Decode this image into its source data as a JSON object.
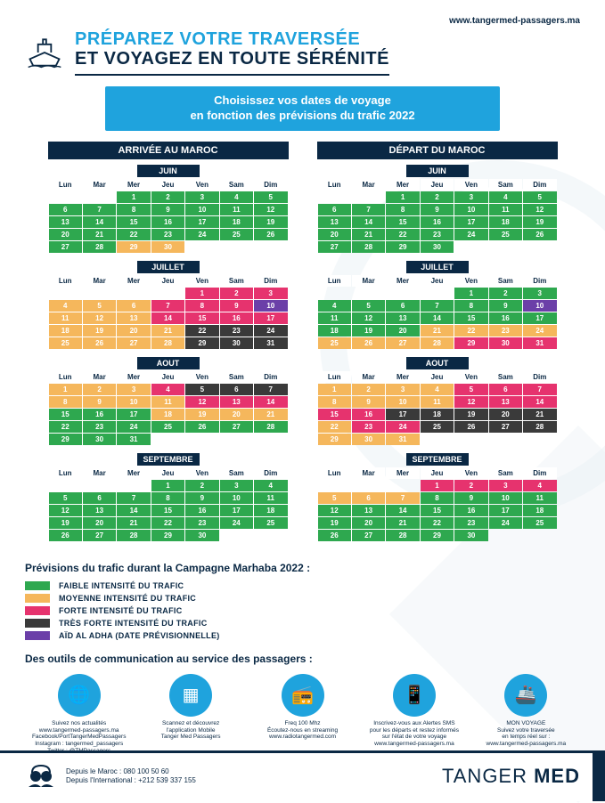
{
  "url_top": "www.tangermed-passagers.ma",
  "title_line1": "PRÉPAREZ VOTRE TRAVERSÉE",
  "title_line2": "ET VOYAGEZ EN TOUTE SÉRÉNITÉ",
  "banner_line1": "Choisissez vos dates de voyage",
  "banner_line2": "en fonction des prévisions du trafic 2022",
  "arrivee_header": "ARRIVÉE AU MAROC",
  "depart_header": "DÉPART DU MAROC",
  "day_headers": [
    "Lun",
    "Mar",
    "Mer",
    "Jeu",
    "Ven",
    "Sam",
    "Dim"
  ],
  "colors": {
    "green": "#2ea84f",
    "orange": "#f5b75c",
    "pink": "#e6336e",
    "dark": "#3a3a3a",
    "purple": "#6b3fa8",
    "navy": "#0a2844",
    "blue": "#1fa3dd"
  },
  "months_arrivee": [
    {
      "name": "JUIN",
      "weeks": [
        [
          null,
          null,
          [
            1,
            "g"
          ],
          [
            2,
            "g"
          ],
          [
            3,
            "g"
          ],
          [
            4,
            "g"
          ],
          [
            5,
            "g"
          ]
        ],
        [
          [
            6,
            "g"
          ],
          [
            7,
            "g"
          ],
          [
            8,
            "g"
          ],
          [
            9,
            "g"
          ],
          [
            10,
            "g"
          ],
          [
            11,
            "g"
          ],
          [
            12,
            "g"
          ]
        ],
        [
          [
            13,
            "g"
          ],
          [
            14,
            "g"
          ],
          [
            15,
            "g"
          ],
          [
            16,
            "g"
          ],
          [
            17,
            "g"
          ],
          [
            18,
            "g"
          ],
          [
            19,
            "g"
          ]
        ],
        [
          [
            20,
            "g"
          ],
          [
            21,
            "g"
          ],
          [
            22,
            "g"
          ],
          [
            23,
            "g"
          ],
          [
            24,
            "g"
          ],
          [
            25,
            "g"
          ],
          [
            26,
            "g"
          ]
        ],
        [
          [
            27,
            "g"
          ],
          [
            28,
            "g"
          ],
          [
            29,
            "o"
          ],
          [
            30,
            "o"
          ],
          null,
          null,
          null
        ]
      ]
    },
    {
      "name": "JUILLET",
      "weeks": [
        [
          null,
          null,
          null,
          null,
          [
            1,
            "p"
          ],
          [
            2,
            "p"
          ],
          [
            3,
            "p"
          ]
        ],
        [
          [
            4,
            "o"
          ],
          [
            5,
            "o"
          ],
          [
            6,
            "o"
          ],
          [
            7,
            "p"
          ],
          [
            8,
            "p"
          ],
          [
            9,
            "p"
          ],
          [
            10,
            "pu"
          ]
        ],
        [
          [
            11,
            "o"
          ],
          [
            12,
            "o"
          ],
          [
            13,
            "o"
          ],
          [
            14,
            "p"
          ],
          [
            15,
            "p"
          ],
          [
            16,
            "p"
          ],
          [
            17,
            "p"
          ]
        ],
        [
          [
            18,
            "o"
          ],
          [
            19,
            "o"
          ],
          [
            20,
            "o"
          ],
          [
            21,
            "o"
          ],
          [
            22,
            "d"
          ],
          [
            23,
            "d"
          ],
          [
            24,
            "d"
          ]
        ],
        [
          [
            25,
            "o"
          ],
          [
            26,
            "o"
          ],
          [
            27,
            "o"
          ],
          [
            28,
            "o"
          ],
          [
            29,
            "d"
          ],
          [
            30,
            "d"
          ],
          [
            31,
            "d"
          ]
        ]
      ]
    },
    {
      "name": "AOUT",
      "weeks": [
        [
          [
            1,
            "o"
          ],
          [
            2,
            "o"
          ],
          [
            3,
            "o"
          ],
          [
            4,
            "p"
          ],
          [
            5,
            "d"
          ],
          [
            6,
            "d"
          ],
          [
            7,
            "d"
          ]
        ],
        [
          [
            8,
            "o"
          ],
          [
            9,
            "o"
          ],
          [
            10,
            "o"
          ],
          [
            11,
            "o"
          ],
          [
            12,
            "p"
          ],
          [
            13,
            "p"
          ],
          [
            14,
            "p"
          ]
        ],
        [
          [
            15,
            "g"
          ],
          [
            16,
            "g"
          ],
          [
            17,
            "g"
          ],
          [
            18,
            "o"
          ],
          [
            19,
            "o"
          ],
          [
            20,
            "o"
          ],
          [
            21,
            "o"
          ]
        ],
        [
          [
            22,
            "g"
          ],
          [
            23,
            "g"
          ],
          [
            24,
            "g"
          ],
          [
            25,
            "g"
          ],
          [
            26,
            "g"
          ],
          [
            27,
            "g"
          ],
          [
            28,
            "g"
          ]
        ],
        [
          [
            29,
            "g"
          ],
          [
            30,
            "g"
          ],
          [
            31,
            "g"
          ],
          null,
          null,
          null,
          null
        ]
      ]
    },
    {
      "name": "SEPTEMBRE",
      "weeks": [
        [
          null,
          null,
          null,
          [
            1,
            "g"
          ],
          [
            2,
            "g"
          ],
          [
            3,
            "g"
          ],
          [
            4,
            "g"
          ]
        ],
        [
          [
            5,
            "g"
          ],
          [
            6,
            "g"
          ],
          [
            7,
            "g"
          ],
          [
            8,
            "g"
          ],
          [
            9,
            "g"
          ],
          [
            10,
            "g"
          ],
          [
            11,
            "g"
          ]
        ],
        [
          [
            12,
            "g"
          ],
          [
            13,
            "g"
          ],
          [
            14,
            "g"
          ],
          [
            15,
            "g"
          ],
          [
            16,
            "g"
          ],
          [
            17,
            "g"
          ],
          [
            18,
            "g"
          ]
        ],
        [
          [
            19,
            "g"
          ],
          [
            20,
            "g"
          ],
          [
            21,
            "g"
          ],
          [
            22,
            "g"
          ],
          [
            23,
            "g"
          ],
          [
            24,
            "g"
          ],
          [
            25,
            "g"
          ]
        ],
        [
          [
            26,
            "g"
          ],
          [
            27,
            "g"
          ],
          [
            28,
            "g"
          ],
          [
            29,
            "g"
          ],
          [
            30,
            "g"
          ],
          null,
          null
        ]
      ]
    }
  ],
  "months_depart": [
    {
      "name": "JUIN",
      "weeks": [
        [
          null,
          null,
          [
            1,
            "g"
          ],
          [
            2,
            "g"
          ],
          [
            3,
            "g"
          ],
          [
            4,
            "g"
          ],
          [
            5,
            "g"
          ]
        ],
        [
          [
            6,
            "g"
          ],
          [
            7,
            "g"
          ],
          [
            8,
            "g"
          ],
          [
            9,
            "g"
          ],
          [
            10,
            "g"
          ],
          [
            11,
            "g"
          ],
          [
            12,
            "g"
          ]
        ],
        [
          [
            13,
            "g"
          ],
          [
            14,
            "g"
          ],
          [
            15,
            "g"
          ],
          [
            16,
            "g"
          ],
          [
            17,
            "g"
          ],
          [
            18,
            "g"
          ],
          [
            19,
            "g"
          ]
        ],
        [
          [
            20,
            "g"
          ],
          [
            21,
            "g"
          ],
          [
            22,
            "g"
          ],
          [
            23,
            "g"
          ],
          [
            24,
            "g"
          ],
          [
            25,
            "g"
          ],
          [
            26,
            "g"
          ]
        ],
        [
          [
            27,
            "g"
          ],
          [
            28,
            "g"
          ],
          [
            29,
            "g"
          ],
          [
            30,
            "g"
          ],
          null,
          null,
          null
        ]
      ]
    },
    {
      "name": "JUILLET",
      "weeks": [
        [
          null,
          null,
          null,
          null,
          [
            1,
            "g"
          ],
          [
            2,
            "g"
          ],
          [
            3,
            "g"
          ]
        ],
        [
          [
            4,
            "g"
          ],
          [
            5,
            "g"
          ],
          [
            6,
            "g"
          ],
          [
            7,
            "g"
          ],
          [
            8,
            "g"
          ],
          [
            9,
            "g"
          ],
          [
            10,
            "pu"
          ]
        ],
        [
          [
            11,
            "g"
          ],
          [
            12,
            "g"
          ],
          [
            13,
            "g"
          ],
          [
            14,
            "g"
          ],
          [
            15,
            "g"
          ],
          [
            16,
            "g"
          ],
          [
            17,
            "g"
          ]
        ],
        [
          [
            18,
            "g"
          ],
          [
            19,
            "g"
          ],
          [
            20,
            "g"
          ],
          [
            21,
            "o"
          ],
          [
            22,
            "o"
          ],
          [
            23,
            "o"
          ],
          [
            24,
            "o"
          ]
        ],
        [
          [
            25,
            "o"
          ],
          [
            26,
            "o"
          ],
          [
            27,
            "o"
          ],
          [
            28,
            "o"
          ],
          [
            29,
            "p"
          ],
          [
            30,
            "p"
          ],
          [
            31,
            "p"
          ]
        ]
      ]
    },
    {
      "name": "AOUT",
      "weeks": [
        [
          [
            1,
            "o"
          ],
          [
            2,
            "o"
          ],
          [
            3,
            "o"
          ],
          [
            4,
            "o"
          ],
          [
            5,
            "p"
          ],
          [
            6,
            "p"
          ],
          [
            7,
            "p"
          ]
        ],
        [
          [
            8,
            "o"
          ],
          [
            9,
            "o"
          ],
          [
            10,
            "o"
          ],
          [
            11,
            "o"
          ],
          [
            12,
            "p"
          ],
          [
            13,
            "p"
          ],
          [
            14,
            "p"
          ]
        ],
        [
          [
            15,
            "p"
          ],
          [
            16,
            "p"
          ],
          [
            17,
            "d"
          ],
          [
            18,
            "d"
          ],
          [
            19,
            "d"
          ],
          [
            20,
            "d"
          ],
          [
            21,
            "d"
          ]
        ],
        [
          [
            22,
            "o"
          ],
          [
            23,
            "p"
          ],
          [
            24,
            "p"
          ],
          [
            25,
            "d"
          ],
          [
            26,
            "d"
          ],
          [
            27,
            "d"
          ],
          [
            28,
            "d"
          ]
        ],
        [
          [
            29,
            "o"
          ],
          [
            30,
            "o"
          ],
          [
            31,
            "o"
          ],
          null,
          null,
          null,
          null
        ]
      ]
    },
    {
      "name": "SEPTEMBRE",
      "weeks": [
        [
          null,
          null,
          null,
          [
            1,
            "p"
          ],
          [
            2,
            "p"
          ],
          [
            3,
            "p"
          ],
          [
            4,
            "p"
          ]
        ],
        [
          [
            5,
            "o"
          ],
          [
            6,
            "o"
          ],
          [
            7,
            "o"
          ],
          [
            8,
            "g"
          ],
          [
            9,
            "g"
          ],
          [
            10,
            "g"
          ],
          [
            11,
            "g"
          ]
        ],
        [
          [
            12,
            "g"
          ],
          [
            13,
            "g"
          ],
          [
            14,
            "g"
          ],
          [
            15,
            "g"
          ],
          [
            16,
            "g"
          ],
          [
            17,
            "g"
          ],
          [
            18,
            "g"
          ]
        ],
        [
          [
            19,
            "g"
          ],
          [
            20,
            "g"
          ],
          [
            21,
            "g"
          ],
          [
            22,
            "g"
          ],
          [
            23,
            "g"
          ],
          [
            24,
            "g"
          ],
          [
            25,
            "g"
          ]
        ],
        [
          [
            26,
            "g"
          ],
          [
            27,
            "g"
          ],
          [
            28,
            "g"
          ],
          [
            29,
            "g"
          ],
          [
            30,
            "g"
          ],
          null,
          null
        ]
      ]
    }
  ],
  "legend_title": "Prévisions du trafic durant la Campagne Marhaba 2022 :",
  "legend": [
    {
      "color": "#2ea84f",
      "label": "FAIBLE INTENSITÉ DU TRAFIC"
    },
    {
      "color": "#f5b75c",
      "label": "MOYENNE INTENSITÉ DU TRAFIC"
    },
    {
      "color": "#e6336e",
      "label": "FORTE INTENSITÉ DU TRAFIC"
    },
    {
      "color": "#3a3a3a",
      "label": "TRÈS FORTE INTENSITÉ DU TRAFIC"
    },
    {
      "color": "#6b3fa8",
      "label": "AÏD AL ADHA (DATE PRÉVISIONNELLE)"
    }
  ],
  "tools_title": "Des outils de communication au service des passagers :",
  "tools": [
    {
      "icon": "🌐",
      "lines": [
        "Suivez nos actualités",
        "www.tangermed-passagers.ma",
        "Facebook/PortTangerMedPassagers",
        "Instagram : tangermed_passagers",
        "Twitter : @TMPassagers"
      ]
    },
    {
      "icon": "▦",
      "lines": [
        "Scannez et découvrez",
        "l'application Mobile",
        "Tanger Med Passagers"
      ]
    },
    {
      "icon": "📻",
      "lines": [
        "Freq 100 Mhz",
        "Écoutez-nous en streaming",
        "www.radiotangermed.com"
      ]
    },
    {
      "icon": "📱",
      "lines": [
        "Inscrivez-vous aux Alertes SMS",
        "pour les départs et restez informés",
        "sur l'état de votre voyage",
        "www.tangermed-passagers.ma"
      ]
    },
    {
      "icon": "🚢",
      "lines": [
        "MON VOYAGE",
        "Suivez votre traversée",
        "en temps réel sur :",
        "www.tangermed-passagers.ma"
      ]
    }
  ],
  "footer_phone1": "Depuis le Maroc : 080 100 50 60",
  "footer_phone2": "Depuis l'International : +212 539 337 155",
  "footer_brand_light": "TANGER ",
  "footer_brand_bold": "MED"
}
